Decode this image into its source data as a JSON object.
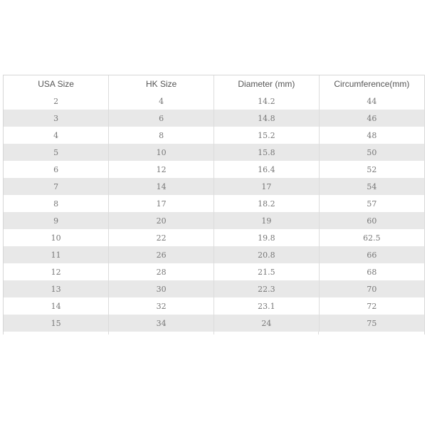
{
  "table": {
    "headers": [
      "USA Size",
      "HK Size",
      "Diameter (mm)",
      "Circumference(mm)"
    ],
    "rows": [
      [
        "2",
        "4",
        "14.2",
        "44"
      ],
      [
        "3",
        "6",
        "14.8",
        "46"
      ],
      [
        "4",
        "8",
        "15.2",
        "48"
      ],
      [
        "5",
        "10",
        "15.8",
        "50"
      ],
      [
        "6",
        "12",
        "16.4",
        "52"
      ],
      [
        "7",
        "14",
        "17",
        "54"
      ],
      [
        "8",
        "17",
        "18.2",
        "57"
      ],
      [
        "9",
        "20",
        "19",
        "60"
      ],
      [
        "10",
        "22",
        "19.8",
        "62.5"
      ],
      [
        "11",
        "26",
        "20.8",
        "66"
      ],
      [
        "12",
        "28",
        "21.5",
        "68"
      ],
      [
        "13",
        "30",
        "22.3",
        "70"
      ],
      [
        "14",
        "32",
        "23.1",
        "72"
      ],
      [
        "15",
        "34",
        "24",
        "75"
      ]
    ],
    "stripe_color": "#e8e8e8"
  }
}
